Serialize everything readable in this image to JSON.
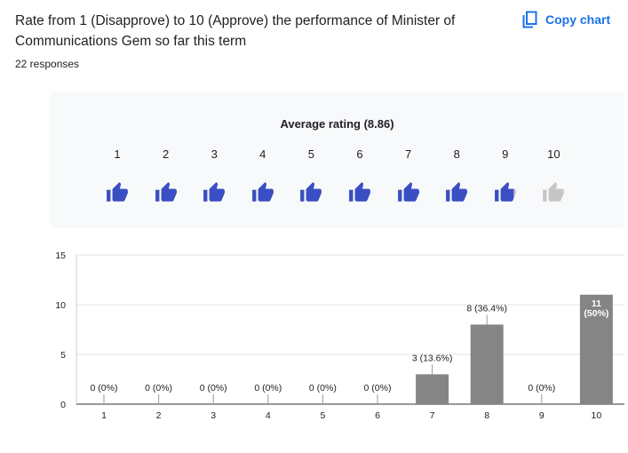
{
  "question": {
    "title": "Rate from 1 (Disapprove) to 10 (Approve) the performance of Minister of Communications Gem so far this term",
    "responses": "22 responses"
  },
  "toolbar": {
    "copy_chart_label": "Copy chart",
    "copy_icon": "copy-icon"
  },
  "rating_summary": {
    "title": "Average rating (8.86)",
    "average": 8.86,
    "scale": [
      "1",
      "2",
      "3",
      "4",
      "5",
      "6",
      "7",
      "8",
      "9",
      "10"
    ],
    "icon": "thumb-up-icon",
    "filled_color": "#3b4fc4",
    "empty_color": "#c6c6c6"
  },
  "chart_data": {
    "type": "bar",
    "categories": [
      "1",
      "2",
      "3",
      "4",
      "5",
      "6",
      "7",
      "8",
      "9",
      "10"
    ],
    "values": [
      0,
      0,
      0,
      0,
      0,
      0,
      3,
      8,
      0,
      11
    ],
    "data_labels": [
      "0 (0%)",
      "0 (0%)",
      "0 (0%)",
      "0 (0%)",
      "0 (0%)",
      "0 (0%)",
      "3 (13.6%)",
      "8 (36.4%)",
      "0 (0%)",
      "11 (50%)"
    ],
    "ylim": [
      0,
      15
    ],
    "yticks": [
      "0",
      "5",
      "10",
      "15"
    ],
    "bar_color": "#858585",
    "grid": true,
    "title": "",
    "xlabel": "",
    "ylabel": ""
  }
}
